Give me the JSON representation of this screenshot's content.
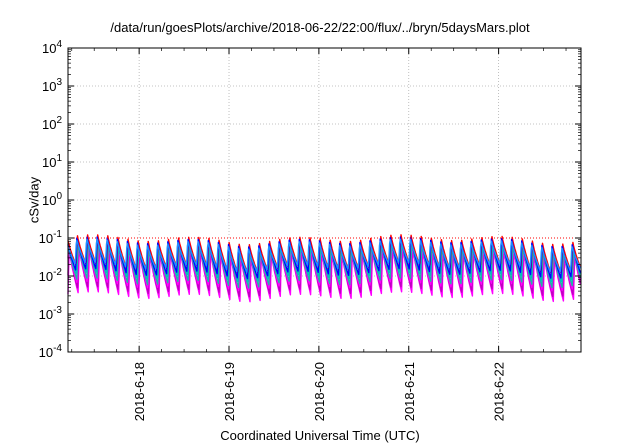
{
  "chart_data": {
    "type": "line",
    "title": "/data/run/goesPlots/archive/2018-06-22/22:00/flux/../bryn/5daysMars.plot",
    "xlabel": "Coordinated Universal Time (UTC)",
    "ylabel": "cSv/day",
    "y_scale": "log",
    "ylim": [
      0.0001,
      10000
    ],
    "xlim": [
      "2018-06-17T05:00",
      "2018-06-22T22:00"
    ],
    "grid": true,
    "y_ticks": [
      {
        "base": "10",
        "exp": "-4",
        "value": 0.0001
      },
      {
        "base": "10",
        "exp": "-3",
        "value": 0.001
      },
      {
        "base": "10",
        "exp": "-2",
        "value": 0.01
      },
      {
        "base": "10",
        "exp": "-1",
        "value": 0.1
      },
      {
        "base": "10",
        "exp": "0",
        "value": 1
      },
      {
        "base": "10",
        "exp": "1",
        "value": 10
      },
      {
        "base": "10",
        "exp": "2",
        "value": 100
      },
      {
        "base": "10",
        "exp": "3",
        "value": 1000
      },
      {
        "base": "10",
        "exp": "4",
        "value": 10000
      }
    ],
    "x_ticks": [
      {
        "label": "2018-6-18",
        "value": "2018-06-18T00:00"
      },
      {
        "label": "2018-6-19",
        "value": "2018-06-19T00:00"
      },
      {
        "label": "2018-6-20",
        "value": "2018-06-20T00:00"
      },
      {
        "label": "2018-6-21",
        "value": "2018-06-21T00:00"
      },
      {
        "label": "2018-6-22",
        "value": "2018-06-22T00:00"
      }
    ],
    "reference_line": {
      "value": 0.1,
      "color": "#ff0000",
      "style": "dotted"
    },
    "cycle_hours": 2.7,
    "series": [
      {
        "color": "#ff00ff",
        "peak": 0.055,
        "trough": 0.0035
      },
      {
        "color": "#c000c0",
        "peak": 0.065,
        "trough": 0.0045
      },
      {
        "color": "#ff00ff",
        "peak": 0.07,
        "trough": 0.006
      },
      {
        "color": "#20b2aa",
        "peak": 0.075,
        "trough": 0.008
      },
      {
        "color": "#00c0c0",
        "peak": 0.085,
        "trough": 0.011
      },
      {
        "color": "#ff0000",
        "peak": 0.12,
        "trough": 0.018
      },
      {
        "color": "#0000ff",
        "peak": 0.105,
        "trough": 0.014
      },
      {
        "color": "#1e90ff",
        "peak": 0.095,
        "trough": 0.02
      }
    ]
  }
}
